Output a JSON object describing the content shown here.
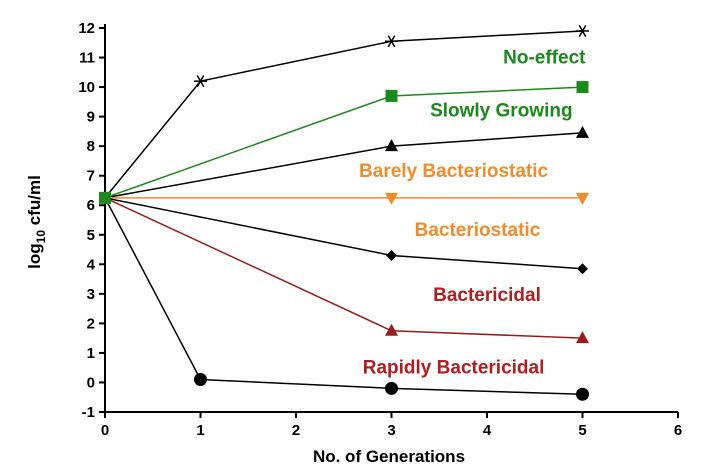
{
  "chart_data": {
    "type": "line",
    "title": "",
    "xlabel": "No. of Generations",
    "ylabel_base": "log",
    "ylabel_sub": "10",
    "ylabel_rest": " cfu/ml",
    "xlim": [
      0,
      6
    ],
    "ylim": [
      -1,
      12
    ],
    "xticks": [
      0,
      1,
      2,
      3,
      4,
      5,
      6
    ],
    "yticks": [
      -1,
      0,
      1,
      2,
      3,
      4,
      5,
      6,
      7,
      8,
      9,
      10,
      11,
      12
    ],
    "grid": false,
    "series": [
      {
        "name": "No-effect",
        "color": "#000000",
        "label_color": "#1a8a1a",
        "marker": "asterisk",
        "x": [
          0,
          1,
          3,
          5
        ],
        "y": [
          6.25,
          10.2,
          11.55,
          11.9
        ]
      },
      {
        "name": "Slowly Growing",
        "color": "#1a8a1a",
        "label_color": "#1a8a1a",
        "marker": "square",
        "x": [
          0,
          3,
          5
        ],
        "y": [
          6.25,
          9.7,
          10.0
        ]
      },
      {
        "name": "",
        "color": "#000000",
        "label_color": "#000000",
        "marker": "triangle-up",
        "x": [
          0,
          3,
          5
        ],
        "y": [
          6.25,
          8.0,
          8.45
        ]
      },
      {
        "name": "Barely Bacteriostatic",
        "color": "#f28c28",
        "label_color": "#f28c28",
        "marker": "triangle-down",
        "x": [
          0,
          3,
          5
        ],
        "y": [
          6.25,
          6.25,
          6.25
        ]
      },
      {
        "name": "Bacteriostatic",
        "color": "#000000",
        "label_color": "#f28c28",
        "marker": "diamond",
        "x": [
          0,
          3,
          5
        ],
        "y": [
          6.25,
          4.3,
          3.85
        ]
      },
      {
        "name": "Bactericidal",
        "color": "#9b1c1c",
        "label_color": "#b01e1e",
        "marker": "triangle-up",
        "x": [
          0,
          3,
          5
        ],
        "y": [
          6.25,
          1.75,
          1.5
        ]
      },
      {
        "name": "Rapidly Bactericidal",
        "color": "#000000",
        "label_color": "#b01e1e",
        "marker": "circle",
        "x": [
          0,
          1,
          3,
          5
        ],
        "y": [
          6.25,
          0.1,
          -0.2,
          -0.4
        ]
      }
    ],
    "annotations": [
      {
        "text": "No-effect",
        "x": 4.6,
        "y": 10.8,
        "color": "#1a8a1a"
      },
      {
        "text": "Slowly Growing",
        "x": 4.15,
        "y": 9.0,
        "color": "#1a8a1a"
      },
      {
        "text": "Barely Bacteriostatic",
        "x": 3.65,
        "y": 6.95,
        "color": "#f28c28"
      },
      {
        "text": "Bacteriostatic",
        "x": 3.9,
        "y": 4.95,
        "color": "#f28c28"
      },
      {
        "text": "Bactericidal",
        "x": 4.0,
        "y": 2.75,
        "color": "#b01e1e"
      },
      {
        "text": "Rapidly Bactericidal",
        "x": 3.65,
        "y": 0.3,
        "color": "#b01e1e"
      }
    ]
  }
}
